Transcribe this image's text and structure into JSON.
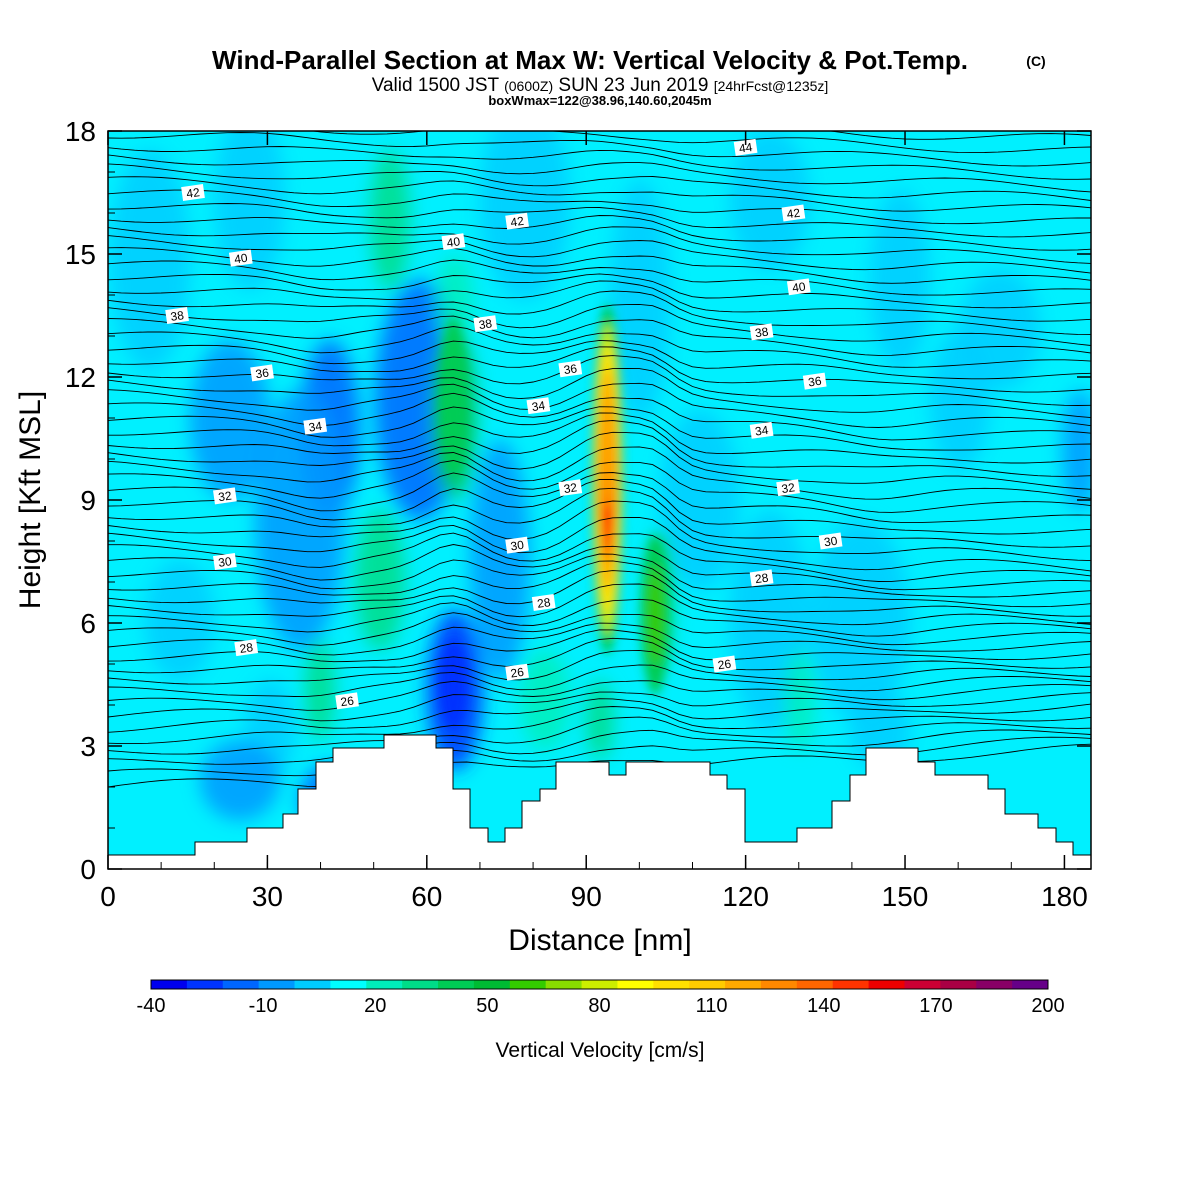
{
  "header": {
    "title": "Wind-Parallel Section at Max W: Vertical Velocity & Pot.Temp.",
    "title_mark": "(C)",
    "valid_prefix": "Valid 1500 JST",
    "valid_zulu": "(0600Z)",
    "valid_date": "SUN 23 Jun 2019",
    "forecast_tag": "[24hrFcst@1235z]",
    "box_info": "boxWmax=122@38.96,140.60,2045m"
  },
  "chart_data": {
    "type": "heatmap",
    "title": "Wind-Parallel Section at Max W: Vertical Velocity & Pot.Temp.",
    "xlabel": "Distance [nm]",
    "ylabel": "Height [Kft MSL]",
    "xlim": [
      0,
      185
    ],
    "ylim": [
      0,
      18
    ],
    "x_ticks": [
      0,
      30,
      60,
      90,
      120,
      150,
      180
    ],
    "y_ticks": [
      0,
      3,
      6,
      9,
      12,
      15,
      18
    ],
    "grid": false,
    "legend_position": "bottom",
    "colorbar": {
      "label": "Vertical Velocity [cm/s]",
      "levels": [
        -40,
        -30,
        -20,
        -10,
        0,
        10,
        20,
        30,
        40,
        50,
        60,
        70,
        80,
        90,
        100,
        110,
        120,
        130,
        140,
        150,
        160,
        170,
        180,
        190,
        200,
        210
      ],
      "tick_labels": [
        "-40",
        "-10",
        "20",
        "50",
        "80",
        "110",
        "140",
        "170",
        "200"
      ],
      "colors": [
        "#0000ee",
        "#0033ff",
        "#0066ff",
        "#0099ff",
        "#00ccff",
        "#00ffff",
        "#00eebb",
        "#00dd88",
        "#00cc55",
        "#00bb33",
        "#33cc00",
        "#88dd00",
        "#ccee00",
        "#ffff00",
        "#ffe000",
        "#ffcc00",
        "#ffaa00",
        "#ff8800",
        "#ff6600",
        "#ff3300",
        "#ee0000",
        "#cc0033",
        "#aa0044",
        "#880066",
        "#660088"
      ]
    },
    "theta_labels": [
      {
        "label": "44",
        "x": 120,
        "y": 17.6
      },
      {
        "label": "42",
        "x": 16,
        "y": 16.5
      },
      {
        "label": "42",
        "x": 77,
        "y": 15.8
      },
      {
        "label": "42",
        "x": 129,
        "y": 16.0
      },
      {
        "label": "40",
        "x": 65,
        "y": 15.3
      },
      {
        "label": "40",
        "x": 25,
        "y": 14.9
      },
      {
        "label": "40",
        "x": 130,
        "y": 14.2
      },
      {
        "label": "38",
        "x": 13,
        "y": 13.5
      },
      {
        "label": "38",
        "x": 71,
        "y": 13.3
      },
      {
        "label": "38",
        "x": 123,
        "y": 13.1
      },
      {
        "label": "36",
        "x": 87,
        "y": 12.2
      },
      {
        "label": "36",
        "x": 29,
        "y": 12.1
      },
      {
        "label": "36",
        "x": 133,
        "y": 11.9
      },
      {
        "label": "34",
        "x": 81,
        "y": 11.3
      },
      {
        "label": "34",
        "x": 39,
        "y": 10.8
      },
      {
        "label": "34",
        "x": 123,
        "y": 10.7
      },
      {
        "label": "32",
        "x": 22,
        "y": 9.1
      },
      {
        "label": "32",
        "x": 87,
        "y": 9.3
      },
      {
        "label": "32",
        "x": 128,
        "y": 9.3
      },
      {
        "label": "30",
        "x": 77,
        "y": 7.9
      },
      {
        "label": "30",
        "x": 22,
        "y": 7.5
      },
      {
        "label": "30",
        "x": 136,
        "y": 8.0
      },
      {
        "label": "28",
        "x": 82,
        "y": 6.5
      },
      {
        "label": "28",
        "x": 123,
        "y": 7.1
      },
      {
        "label": "28",
        "x": 26,
        "y": 5.4
      },
      {
        "label": "26",
        "x": 77,
        "y": 4.8
      },
      {
        "label": "26",
        "x": 116,
        "y": 5.0
      },
      {
        "label": "26",
        "x": 45,
        "y": 4.1
      }
    ],
    "w_max_label": "122",
    "w_features": [
      {
        "x": 94,
        "y": 9.5,
        "value": 122
      },
      {
        "x": 103,
        "y": 6.2,
        "value": 60
      },
      {
        "x": 65,
        "y": 11.5,
        "value": 45
      },
      {
        "x": 65,
        "y": 4.5,
        "value": -30
      }
    ]
  }
}
